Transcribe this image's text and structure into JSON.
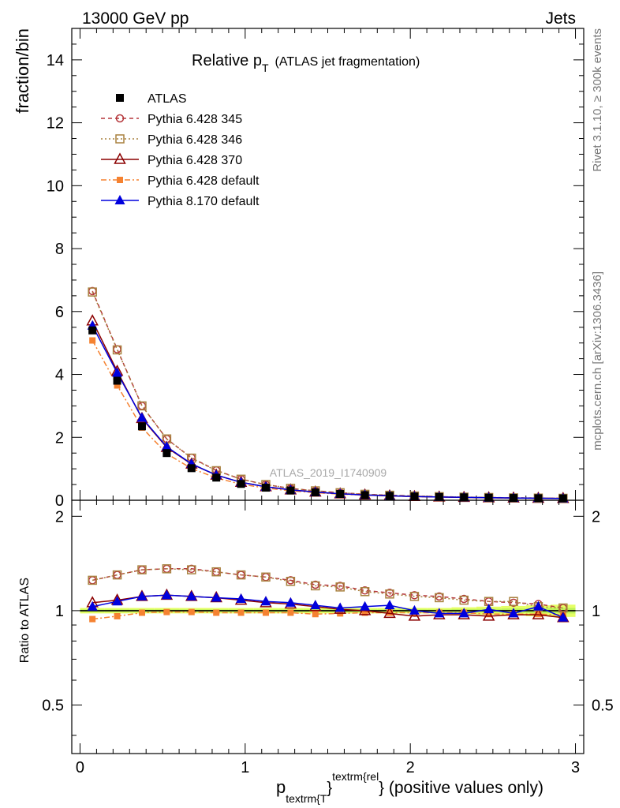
{
  "header": {
    "left": "13000 GeV pp",
    "right": "Jets"
  },
  "side_labels": {
    "rivet": "Rivet 3.1.10, ≥ 300k events",
    "mcplots": "mcplots.cern.ch [arXiv:1306.3436]"
  },
  "watermark": "ATLAS_2019_I1740909",
  "colors": {
    "atlas": "#000000",
    "p345": "#b5373b",
    "p346": "#a8813f",
    "p370": "#8b0000",
    "p6def": "#f58231",
    "p8def": "#0000dd",
    "band": "#e5ff66"
  },
  "chart_data": [
    {
      "type": "line",
      "panel": "main",
      "title_main": "Relative p",
      "title_sub": "T",
      "title_rest": "(ATLAS jet fragmentation)",
      "ylabel": "fraction/bin",
      "xlim": [
        -0.05,
        3.05
      ],
      "ylim": [
        0,
        15
      ],
      "yticks": [
        0,
        2,
        4,
        6,
        8,
        10,
        12,
        14
      ],
      "grid": false,
      "legend_position": "top-left",
      "x": [
        0.075,
        0.225,
        0.375,
        0.525,
        0.675,
        0.825,
        0.975,
        1.125,
        1.275,
        1.425,
        1.575,
        1.725,
        1.875,
        2.025,
        2.175,
        2.325,
        2.475,
        2.625,
        2.775,
        2.925
      ],
      "series": [
        {
          "name": "ATLAS",
          "key": "atlas",
          "values": [
            5.4,
            3.8,
            2.35,
            1.5,
            1.02,
            0.72,
            0.52,
            0.4,
            0.31,
            0.25,
            0.2,
            0.165,
            0.14,
            0.12,
            0.105,
            0.093,
            0.082,
            0.073,
            0.066,
            0.06
          ]
        },
        {
          "name": "Pythia 6.428 345",
          "key": "p345",
          "values": [
            6.65,
            4.8,
            3.0,
            1.95,
            1.35,
            0.95,
            0.67,
            0.5,
            0.38,
            0.3,
            0.24,
            0.19,
            0.16,
            0.135,
            0.115,
            0.1,
            0.088,
            0.078,
            0.07,
            0.063
          ]
        },
        {
          "name": "Pythia 6.428 346",
          "key": "p346",
          "values": [
            6.62,
            4.78,
            3.0,
            1.95,
            1.34,
            0.94,
            0.67,
            0.5,
            0.38,
            0.3,
            0.24,
            0.19,
            0.16,
            0.135,
            0.115,
            0.1,
            0.088,
            0.078,
            0.07,
            0.063
          ]
        },
        {
          "name": "Pythia 6.428 370",
          "key": "p370",
          "values": [
            5.7,
            4.1,
            2.6,
            1.68,
            1.15,
            0.8,
            0.57,
            0.43,
            0.33,
            0.26,
            0.205,
            0.168,
            0.14,
            0.118,
            0.103,
            0.09,
            0.079,
            0.071,
            0.064,
            0.058
          ]
        },
        {
          "name": "Pythia 6.428 default",
          "key": "p6def",
          "values": [
            5.08,
            3.65,
            2.31,
            1.48,
            1.01,
            0.71,
            0.51,
            0.39,
            0.3,
            0.24,
            0.195,
            0.163,
            0.138,
            0.118,
            0.103,
            0.09,
            0.079,
            0.071,
            0.064,
            0.058
          ]
        },
        {
          "name": "Pythia 8.170 default",
          "key": "p8def",
          "values": [
            5.55,
            4.05,
            2.62,
            1.7,
            1.16,
            0.8,
            0.57,
            0.43,
            0.33,
            0.26,
            0.205,
            0.168,
            0.143,
            0.12,
            0.104,
            0.092,
            0.082,
            0.073,
            0.066,
            0.058
          ]
        }
      ]
    },
    {
      "type": "line",
      "panel": "ratio",
      "ylabel": "Ratio to ATLAS",
      "xlabel_main": "p",
      "xlabel_sub": "textrm{T",
      "xlabel_sup": "textrm{rel",
      "xlabel_brace": "}",
      "xlabel_rest": "(positive values only)",
      "xlim": [
        -0.05,
        3.05
      ],
      "ylim": [
        0.35,
        2.25
      ],
      "xticks": [
        0,
        1,
        2,
        3
      ],
      "yticks": [
        0.5,
        1,
        2
      ],
      "x": [
        0.075,
        0.225,
        0.375,
        0.525,
        0.675,
        0.825,
        0.975,
        1.125,
        1.275,
        1.425,
        1.575,
        1.725,
        1.875,
        2.025,
        2.175,
        2.325,
        2.475,
        2.625,
        2.775,
        2.925
      ],
      "band_halfwidth": [
        0.02,
        0.02,
        0.02,
        0.02,
        0.02,
        0.02,
        0.02,
        0.02,
        0.02,
        0.02,
        0.02,
        0.02,
        0.02,
        0.02,
        0.02,
        0.025,
        0.03,
        0.035,
        0.04,
        0.045
      ],
      "series": [
        {
          "name": "ATLAS",
          "key": "atlas",
          "values": [
            1,
            1,
            1,
            1,
            1,
            1,
            1,
            1,
            1,
            1,
            1,
            1,
            1,
            1,
            1,
            1,
            1,
            1,
            1,
            1
          ]
        },
        {
          "name": "Pythia 6.428 345",
          "key": "p345",
          "values": [
            1.25,
            1.3,
            1.35,
            1.36,
            1.36,
            1.33,
            1.3,
            1.28,
            1.25,
            1.21,
            1.2,
            1.16,
            1.14,
            1.12,
            1.11,
            1.09,
            1.07,
            1.06,
            1.05,
            1.02
          ]
        },
        {
          "name": "Pythia 6.428 346",
          "key": "p346",
          "values": [
            1.25,
            1.3,
            1.35,
            1.36,
            1.35,
            1.33,
            1.3,
            1.28,
            1.24,
            1.2,
            1.19,
            1.15,
            1.13,
            1.11,
            1.1,
            1.08,
            1.07,
            1.07,
            1.03,
            1.02
          ]
        },
        {
          "name": "Pythia 6.428 370",
          "key": "p370",
          "values": [
            1.06,
            1.08,
            1.11,
            1.12,
            1.11,
            1.1,
            1.08,
            1.06,
            1.05,
            1.03,
            1.01,
            1.0,
            0.98,
            0.96,
            0.97,
            0.97,
            0.96,
            0.97,
            0.97,
            0.95
          ]
        },
        {
          "name": "Pythia 6.428 default",
          "key": "p6def",
          "values": [
            0.94,
            0.96,
            0.985,
            0.99,
            0.99,
            0.985,
            0.985,
            0.985,
            0.985,
            0.975,
            0.98,
            0.985,
            0.985,
            0.985,
            0.985,
            0.985,
            0.975,
            0.975,
            0.975,
            0.97
          ]
        },
        {
          "name": "Pythia 8.170 default",
          "key": "p8def",
          "values": [
            1.03,
            1.07,
            1.11,
            1.12,
            1.11,
            1.1,
            1.09,
            1.07,
            1.06,
            1.04,
            1.02,
            1.03,
            1.04,
            1.0,
            0.98,
            0.98,
            1.01,
            0.98,
            1.03,
            0.95
          ]
        }
      ]
    }
  ]
}
